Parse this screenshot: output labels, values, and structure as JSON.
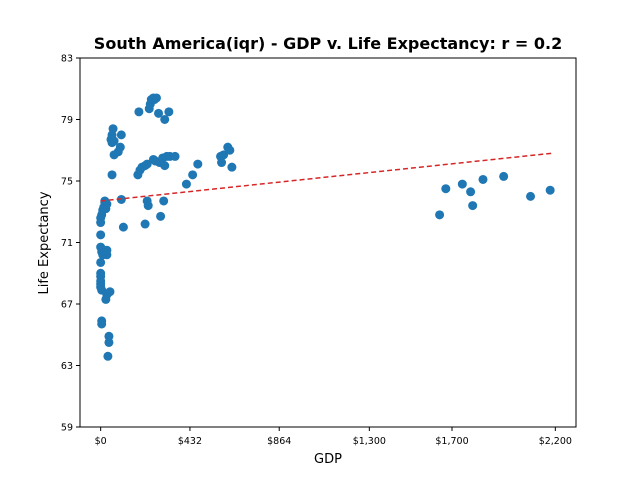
{
  "chart_data": {
    "type": "scatter",
    "title": "South America(iqr) - GDP v. Life Expectancy: r = 0.2",
    "xlabel": "GDP",
    "ylabel": "Life Expectancy",
    "xlim": [
      -100,
      2300
    ],
    "ylim": [
      59,
      83
    ],
    "xticks": [
      {
        "value": 0,
        "label": "$0"
      },
      {
        "value": 432,
        "label": "$432"
      },
      {
        "value": 864,
        "label": "$864"
      },
      {
        "value": 1300,
        "label": "$1,300"
      },
      {
        "value": 1700,
        "label": "$1,700"
      },
      {
        "value": 2200,
        "label": "$2,200"
      }
    ],
    "yticks": [
      {
        "value": 59,
        "label": "59"
      },
      {
        "value": 63,
        "label": "63"
      },
      {
        "value": 67,
        "label": "67"
      },
      {
        "value": 71,
        "label": "71"
      },
      {
        "value": 75,
        "label": "75"
      },
      {
        "value": 79,
        "label": "79"
      },
      {
        "value": 83,
        "label": "83"
      }
    ],
    "grid": false,
    "point_color": "#1f77b4",
    "trend_color": "#d62728",
    "trendline": {
      "x": [
        0,
        2180
      ],
      "y": [
        73.7,
        76.8
      ]
    },
    "points": [
      [
        0,
        72.6
      ],
      [
        0,
        72.3
      ],
      [
        5,
        72.8
      ],
      [
        10,
        73.1
      ],
      [
        15,
        73.3
      ],
      [
        20,
        73.6
      ],
      [
        25,
        73.2
      ],
      [
        30,
        73.5
      ],
      [
        20,
        73.7
      ],
      [
        0,
        71.5
      ],
      [
        0,
        70.7
      ],
      [
        5,
        70.4
      ],
      [
        10,
        70.2
      ],
      [
        20,
        70.4
      ],
      [
        30,
        70.2
      ],
      [
        30,
        70.5
      ],
      [
        0,
        69.7
      ],
      [
        0,
        69.0
      ],
      [
        0,
        68.8
      ],
      [
        0,
        68.5
      ],
      [
        0,
        68.3
      ],
      [
        0,
        68.1
      ],
      [
        5,
        67.9
      ],
      [
        30,
        67.6
      ],
      [
        45,
        67.8
      ],
      [
        25,
        67.3
      ],
      [
        5,
        65.9
      ],
      [
        5,
        65.7
      ],
      [
        40,
        64.9
      ],
      [
        40,
        64.5
      ],
      [
        35,
        63.6
      ],
      [
        60,
        78.4
      ],
      [
        55,
        78.0
      ],
      [
        50,
        77.7
      ],
      [
        55,
        77.5
      ],
      [
        65,
        77.6
      ],
      [
        100,
        78.0
      ],
      [
        95,
        77.2
      ],
      [
        85,
        76.9
      ],
      [
        65,
        76.7
      ],
      [
        55,
        75.4
      ],
      [
        100,
        73.8
      ],
      [
        110,
        72.0
      ],
      [
        180,
        75.4
      ],
      [
        190,
        75.7
      ],
      [
        200,
        75.9
      ],
      [
        215,
        76.0
      ],
      [
        225,
        76.1
      ],
      [
        185,
        79.5
      ],
      [
        235,
        79.7
      ],
      [
        240,
        80.0
      ],
      [
        245,
        80.3
      ],
      [
        255,
        80.4
      ],
      [
        260,
        80.3
      ],
      [
        270,
        80.4
      ],
      [
        280,
        79.4
      ],
      [
        310,
        79.0
      ],
      [
        330,
        79.5
      ],
      [
        255,
        76.4
      ],
      [
        265,
        76.3
      ],
      [
        285,
        76.2
      ],
      [
        300,
        76.5
      ],
      [
        320,
        76.6
      ],
      [
        335,
        76.6
      ],
      [
        360,
        76.6
      ],
      [
        310,
        76.0
      ],
      [
        225,
        73.7
      ],
      [
        230,
        73.4
      ],
      [
        215,
        72.2
      ],
      [
        305,
        73.7
      ],
      [
        290,
        72.7
      ],
      [
        415,
        74.8
      ],
      [
        445,
        75.4
      ],
      [
        470,
        76.1
      ],
      [
        580,
        76.6
      ],
      [
        585,
        76.2
      ],
      [
        595,
        76.7
      ],
      [
        615,
        77.2
      ],
      [
        625,
        77.0
      ],
      [
        635,
        75.9
      ],
      [
        1640,
        72.8
      ],
      [
        1670,
        74.5
      ],
      [
        1750,
        74.8
      ],
      [
        1790,
        74.3
      ],
      [
        1800,
        73.4
      ],
      [
        1850,
        75.1
      ],
      [
        1950,
        75.3
      ],
      [
        2080,
        74.0
      ],
      [
        2175,
        74.4
      ]
    ]
  }
}
